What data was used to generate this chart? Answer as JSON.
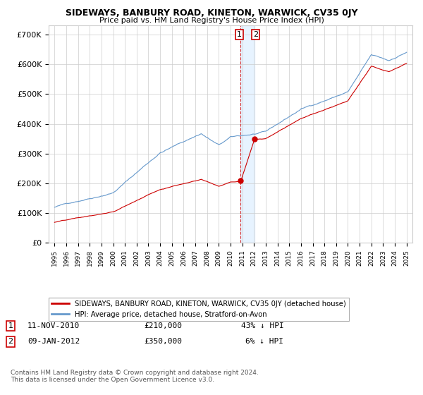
{
  "title": "SIDEWAYS, BANBURY ROAD, KINETON, WARWICK, CV35 0JY",
  "subtitle": "Price paid vs. HM Land Registry's House Price Index (HPI)",
  "ylabel_ticks": [
    "£0",
    "£100K",
    "£200K",
    "£300K",
    "£400K",
    "£500K",
    "£600K",
    "£700K"
  ],
  "ytick_values": [
    0,
    100000,
    200000,
    300000,
    400000,
    500000,
    600000,
    700000
  ],
  "ylim": [
    0,
    730000
  ],
  "x_start_year": 1995,
  "x_end_year": 2025,
  "legend_red": "SIDEWAYS, BANBURY ROAD, KINETON, WARWICK, CV35 0JY (detached house)",
  "legend_blue": "HPI: Average price, detached house, Stratford-on-Avon",
  "point1_date": "11-NOV-2010",
  "point1_price": "£210,000",
  "point1_pct": "43% ↓ HPI",
  "point1_year": 2010.87,
  "point1_value": 210000,
  "point2_date": "09-JAN-2012",
  "point2_price": "£350,000",
  "point2_pct": "6% ↓ HPI",
  "point2_year": 2012.03,
  "point2_value": 350000,
  "red_color": "#cc0000",
  "blue_color": "#6699cc",
  "blue_shade_color": "#ddeeff",
  "vline_color": "#cc0000",
  "background_color": "#ffffff",
  "grid_color": "#cccccc",
  "footer_text": "Contains HM Land Registry data © Crown copyright and database right 2024.\nThis data is licensed under the Open Government Licence v3.0."
}
